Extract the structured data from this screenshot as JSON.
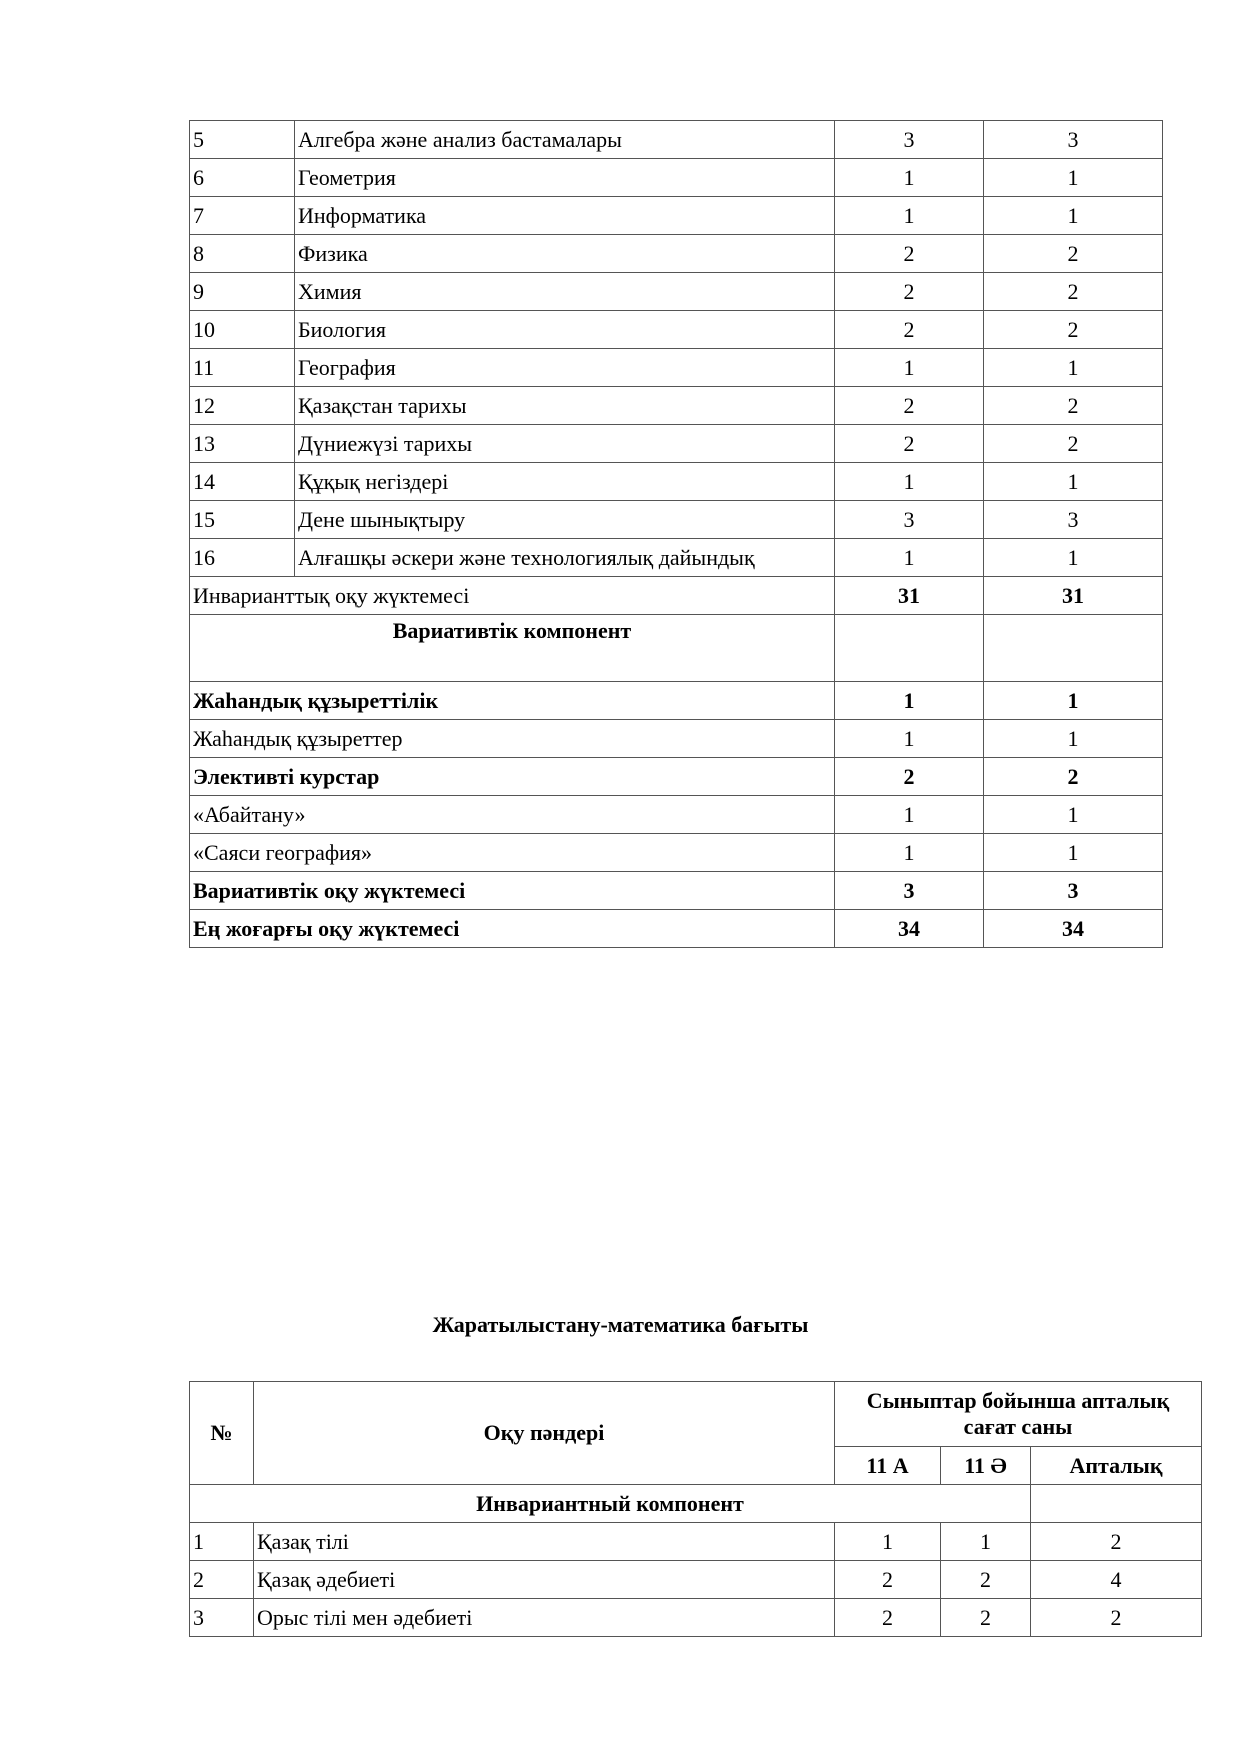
{
  "table1": {
    "rows": [
      {
        "n": "5",
        "subject": "Алгебра және анализ бастамалары",
        "a": "3",
        "b": "3"
      },
      {
        "n": "6",
        "subject": "Геометрия",
        "a": "1",
        "b": "1"
      },
      {
        "n": "7",
        "subject": "Информатика",
        "a": "1",
        "b": "1"
      },
      {
        "n": "8",
        "subject": "Физика",
        "a": "2",
        "b": "2"
      },
      {
        "n": "9",
        "subject": "Химия",
        "a": "2",
        "b": "2"
      },
      {
        "n": "10",
        "subject": "Биология",
        "a": "2",
        "b": "2"
      },
      {
        "n": "11",
        "subject": "География",
        "a": "1",
        "b": "1"
      },
      {
        "n": "12",
        "subject": "Қазақстан тарихы",
        "a": "2",
        "b": "2"
      },
      {
        "n": "13",
        "subject": "Дүниежүзі тарихы",
        "a": "2",
        "b": "2"
      },
      {
        "n": "14",
        "subject": "Құқық негіздері",
        "a": "1",
        "b": "1"
      },
      {
        "n": "15",
        "subject": "Дене шынықтыру",
        "a": "3",
        "b": "3"
      },
      {
        "n": "16",
        "subject": "Алғашқы әскери және технологиялық дайындық",
        "a": "1",
        "b": "1"
      }
    ],
    "invariant_total": {
      "label": "Инварианттық оқу жүктемесі",
      "a": "31",
      "b": "31"
    },
    "variative_header": "Вариативтік компонент",
    "variative_rows": [
      {
        "label": "Жаһандық құзыреттілік",
        "a": "1",
        "b": "1",
        "bold": true
      },
      {
        "label": "Жаһандық құзыреттер",
        "a": "1",
        "b": "1",
        "bold": false
      },
      {
        "label": "Элективті курстар",
        "a": "2",
        "b": "2",
        "bold": true
      },
      {
        "label": "«Абайтану»",
        "a": "1",
        "b": "1",
        "bold": false
      },
      {
        "label": "«Саяси география»",
        "a": "1",
        "b": "1",
        "bold": false
      },
      {
        "label": "Вариативтік оқу жүктемесі",
        "a": "3",
        "b": "3",
        "bold": true
      },
      {
        "label": "Ең жоғарғы оқу жүктемесі",
        "a": "34",
        "b": "34",
        "bold": true
      }
    ]
  },
  "section_title": "Жаратылыстану-математика бағыты",
  "table2": {
    "header": {
      "num": "№",
      "subjects": "Оқу пәндері",
      "hours": "Сыныптар бойынша апталық сағат саны",
      "col_a": "11 А",
      "col_b": "11 Ә",
      "col_week": "Апталық"
    },
    "invariant_header": "Инвариантный компонент",
    "rows": [
      {
        "n": "1",
        "subject": "Қазақ тілі",
        "a": "1",
        "b": "1",
        "w": "2"
      },
      {
        "n": "2",
        "subject": "Қазақ әдебиеті",
        "a": "2",
        "b": "2",
        "w": "4"
      },
      {
        "n": "3",
        "subject": "Орыс тілі мен әдебиеті",
        "a": "2",
        "b": "2",
        "w": "2"
      }
    ]
  }
}
